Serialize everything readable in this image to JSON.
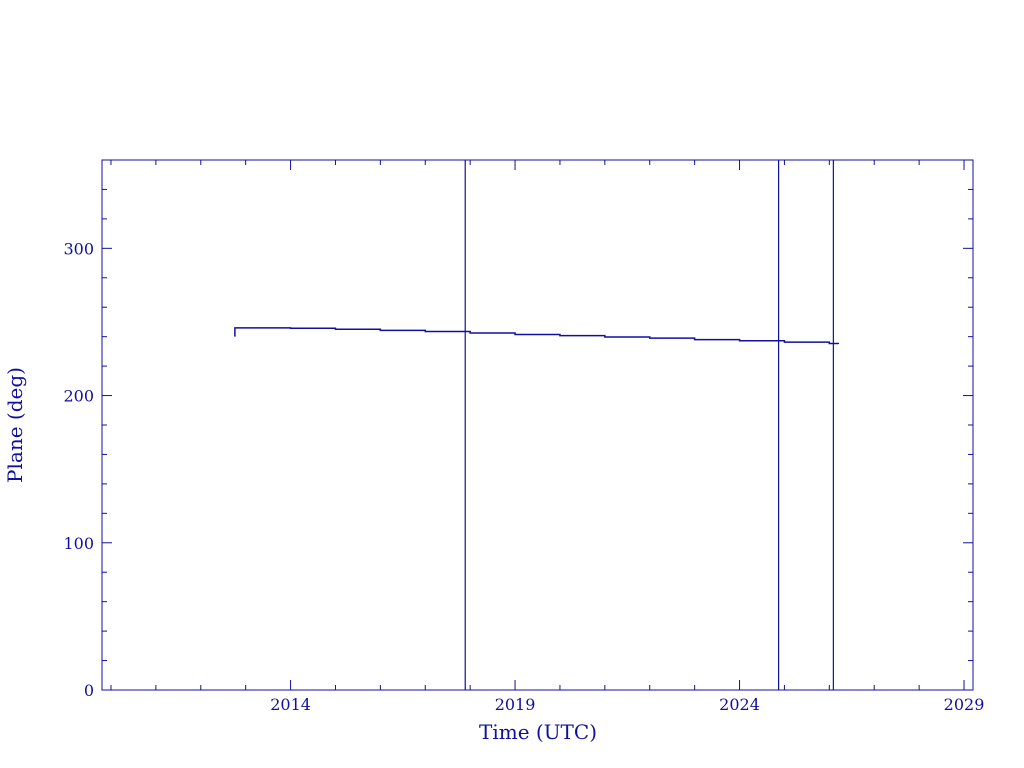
{
  "chart_data": {
    "type": "line",
    "title": "",
    "xlabel": "Time (UTC)",
    "ylabel": "Plane (deg)",
    "xlim": [
      2009.8,
      2029.2
    ],
    "ylim": [
      0,
      360
    ],
    "x_ticks": [
      2014,
      2019,
      2024,
      2029
    ],
    "y_ticks": [
      0,
      100,
      200,
      300
    ],
    "x_minor_step": 1,
    "y_minor_step": 20,
    "grid": false,
    "color": "#1010a0",
    "series": [
      {
        "x": [
          2012.76,
          2012.76,
          2014,
          2015,
          2016,
          2017,
          2018,
          2019,
          2020,
          2021,
          2022,
          2023,
          2024,
          2025,
          2026,
          2026.2
        ],
        "y": [
          240,
          246,
          245.7,
          245,
          244.3,
          243.5,
          242.5,
          241.5,
          240.7,
          239.8,
          239,
          238,
          237.2,
          236.3,
          235.4,
          235
        ]
      }
    ],
    "vertical_lines": [
      2017.89,
      2024.87,
      2026.09
    ]
  }
}
